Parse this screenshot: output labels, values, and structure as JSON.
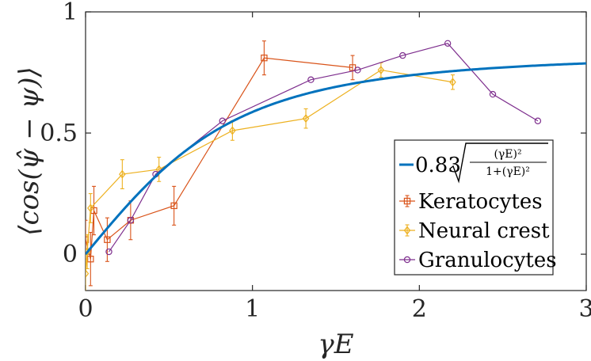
{
  "chart_data": {
    "type": "line",
    "xlabel": "γE",
    "ylabel": "⟨cos(ψ̂ − ψ)⟩",
    "xlim": [
      0,
      3
    ],
    "ylim": [
      -0.15,
      1
    ],
    "xticks": [
      0,
      1,
      2,
      3
    ],
    "xtick_labels": [
      "0",
      "1",
      "2",
      "3"
    ],
    "yticks": [
      0,
      0.5,
      1
    ],
    "ytick_labels": [
      "0",
      "0.5",
      "1"
    ],
    "grid": false,
    "legend_position": "lower-right",
    "model": {
      "name": "0.83√((γE)²/(1+(γE)²))",
      "coefficient_label": "0.83",
      "numerator_label": "(γE)²",
      "denominator_label": "1+(γE)²",
      "coefficient": 0.83,
      "color": "#0072BD"
    },
    "series": [
      {
        "name": "Keratocytes",
        "color": "#D95319",
        "marker": "square",
        "points": [
          {
            "x": 0.0,
            "y": 0.06,
            "err": 0.08
          },
          {
            "x": 0.03,
            "y": -0.02,
            "err": 0.11
          },
          {
            "x": 0.05,
            "y": 0.18,
            "err": 0.1
          },
          {
            "x": 0.13,
            "y": 0.06,
            "err": 0.09
          },
          {
            "x": 0.27,
            "y": 0.14,
            "err": 0.08
          },
          {
            "x": 0.53,
            "y": 0.2,
            "err": 0.08
          },
          {
            "x": 1.07,
            "y": 0.81,
            "err": 0.07
          },
          {
            "x": 1.6,
            "y": 0.77,
            "err": 0.05
          }
        ]
      },
      {
        "name": "Neural crest",
        "color": "#EDB120",
        "marker": "diamond",
        "points": [
          {
            "x": 0.0,
            "y": -0.08,
            "err": 0.09
          },
          {
            "x": 0.01,
            "y": 0.01,
            "err": 0.07
          },
          {
            "x": 0.03,
            "y": 0.19,
            "err": 0.06
          },
          {
            "x": 0.22,
            "y": 0.33,
            "err": 0.06
          },
          {
            "x": 0.44,
            "y": 0.35,
            "err": 0.05
          },
          {
            "x": 0.88,
            "y": 0.51,
            "err": 0.04
          },
          {
            "x": 1.32,
            "y": 0.56,
            "err": 0.04
          },
          {
            "x": 1.77,
            "y": 0.76,
            "err": 0.03
          },
          {
            "x": 2.2,
            "y": 0.71,
            "err": 0.03
          }
        ]
      },
      {
        "name": "Granulocytes",
        "color": "#7E2F8E",
        "marker": "circle",
        "points": [
          {
            "x": 0.14,
            "y": 0.01
          },
          {
            "x": 0.27,
            "y": 0.14
          },
          {
            "x": 0.42,
            "y": 0.33
          },
          {
            "x": 0.82,
            "y": 0.55
          },
          {
            "x": 1.35,
            "y": 0.72
          },
          {
            "x": 1.63,
            "y": 0.76
          },
          {
            "x": 1.9,
            "y": 0.82
          },
          {
            "x": 2.17,
            "y": 0.87
          },
          {
            "x": 2.44,
            "y": 0.66
          },
          {
            "x": 2.71,
            "y": 0.55
          }
        ]
      }
    ]
  }
}
